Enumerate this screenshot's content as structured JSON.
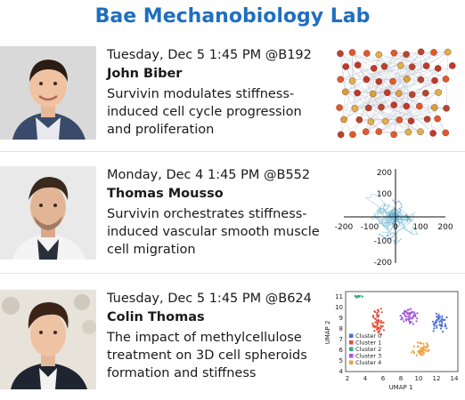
{
  "lab_title": "Bae Mechanobiology Lab",
  "talks": [
    {
      "when": "Tuesday, Dec 5 1:45 PM @B192",
      "speaker": "John Biber",
      "title": "Survivin modulates stiffness-induced cell cycle progression and proliferation"
    },
    {
      "when": "Monday, Dec 4 1:45 PM @B552",
      "speaker": "Thomas Mousso",
      "title": "Survivin orchestrates stiffness-induced vascular smooth muscle cell migration"
    },
    {
      "when": "Tuesday, Dec 5 1:45 PM @B624",
      "speaker": "Colin Thomas",
      "title": "The impact of methylcellulose treatment on 3D cell spheroids formation and stiffness"
    }
  ],
  "figures": {
    "migration_plot": {
      "xticks": [
        "-200",
        "-100",
        "0",
        "100",
        "200"
      ],
      "yticks": [
        "200",
        "100",
        "0",
        "-100",
        "-200"
      ]
    },
    "umap": {
      "xlabel": "UMAP 1",
      "ylabel": "UMAP 2",
      "xticks": [
        "2",
        "4",
        "6",
        "8",
        "10",
        "12",
        "14"
      ],
      "yticks": [
        "11",
        "10",
        "9",
        "8",
        "7",
        "6",
        "5",
        "4"
      ],
      "legend": [
        "Cluster 0",
        "Cluster 1",
        "Cluster 2",
        "Cluster 3",
        "Cluster 4"
      ],
      "colors": [
        "#4f6fd6",
        "#e0503c",
        "#2fae7c",
        "#a35ad6",
        "#f0a040"
      ]
    }
  },
  "colors": {
    "title": "#1f6fc0"
  }
}
